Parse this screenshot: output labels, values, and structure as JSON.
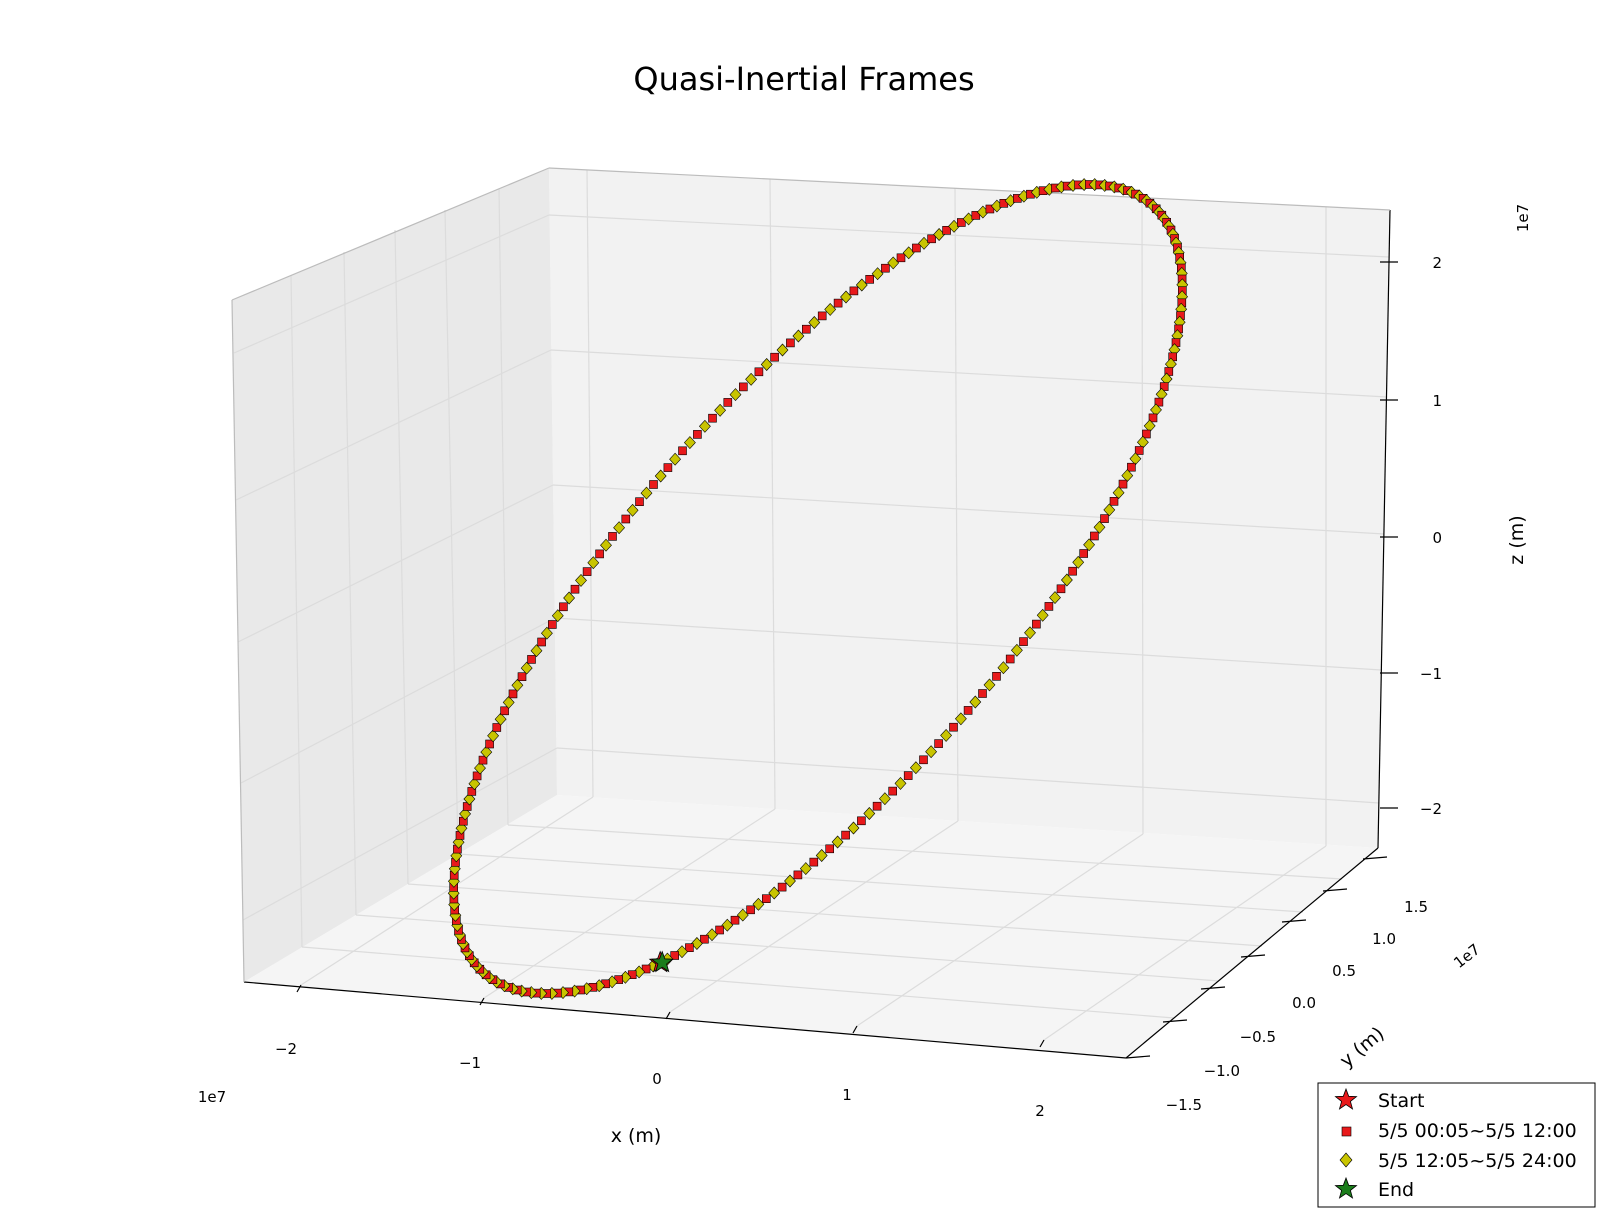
{
  "chart_data": {
    "type": "scatter3d",
    "title": "Quasi-Inertial Frames",
    "xlabel": "x (m)",
    "ylabel": "y (m)",
    "zlabel": "z (m)",
    "x_offset_label": "1e7",
    "y_offset_label": "1e7",
    "z_offset_label": "1e7",
    "x_ticks": [
      "−2",
      "−1",
      "0",
      "1",
      "2"
    ],
    "y_ticks": [
      "−1.5",
      "−1.0",
      "−0.5",
      "0.0",
      "0.5",
      "1.0",
      "1.5"
    ],
    "z_ticks": [
      "−2",
      "−1",
      "0",
      "1",
      "2"
    ],
    "xlim": [
      -2.5,
      2.5
    ],
    "ylim": [
      -1.7,
      1.7
    ],
    "zlim": [
      -2.4,
      2.4
    ],
    "unit_scale": "1e7",
    "grid": true,
    "legend": {
      "position": "bottom-right",
      "entries": [
        {
          "label": "Start",
          "marker": "star",
          "color": "#e8191b"
        },
        {
          "label": "5/5 00:05~5/5 12:00",
          "marker": "square",
          "color": "#e8191b"
        },
        {
          "label": "5/5 12:05~5/5 24:00",
          "marker": "diamond",
          "color": "#c8c400"
        },
        {
          "label": "End",
          "marker": "star",
          "color": "#1b7d1b"
        }
      ]
    },
    "orbit": {
      "shape": "closed circular orbit",
      "radius_1e7m": 2.6,
      "inclination_deg": 55,
      "points_per_series": 144,
      "series": [
        {
          "name": "5/5 00:05~5/5 12:00",
          "marker": "square",
          "color": "#e8191b"
        },
        {
          "name": "5/5 12:05~5/5 24:00",
          "marker": "diamond",
          "color": "#c8c400"
        }
      ],
      "start_end_point": [
        -0.3,
        -1.7,
        -1.75
      ]
    }
  }
}
